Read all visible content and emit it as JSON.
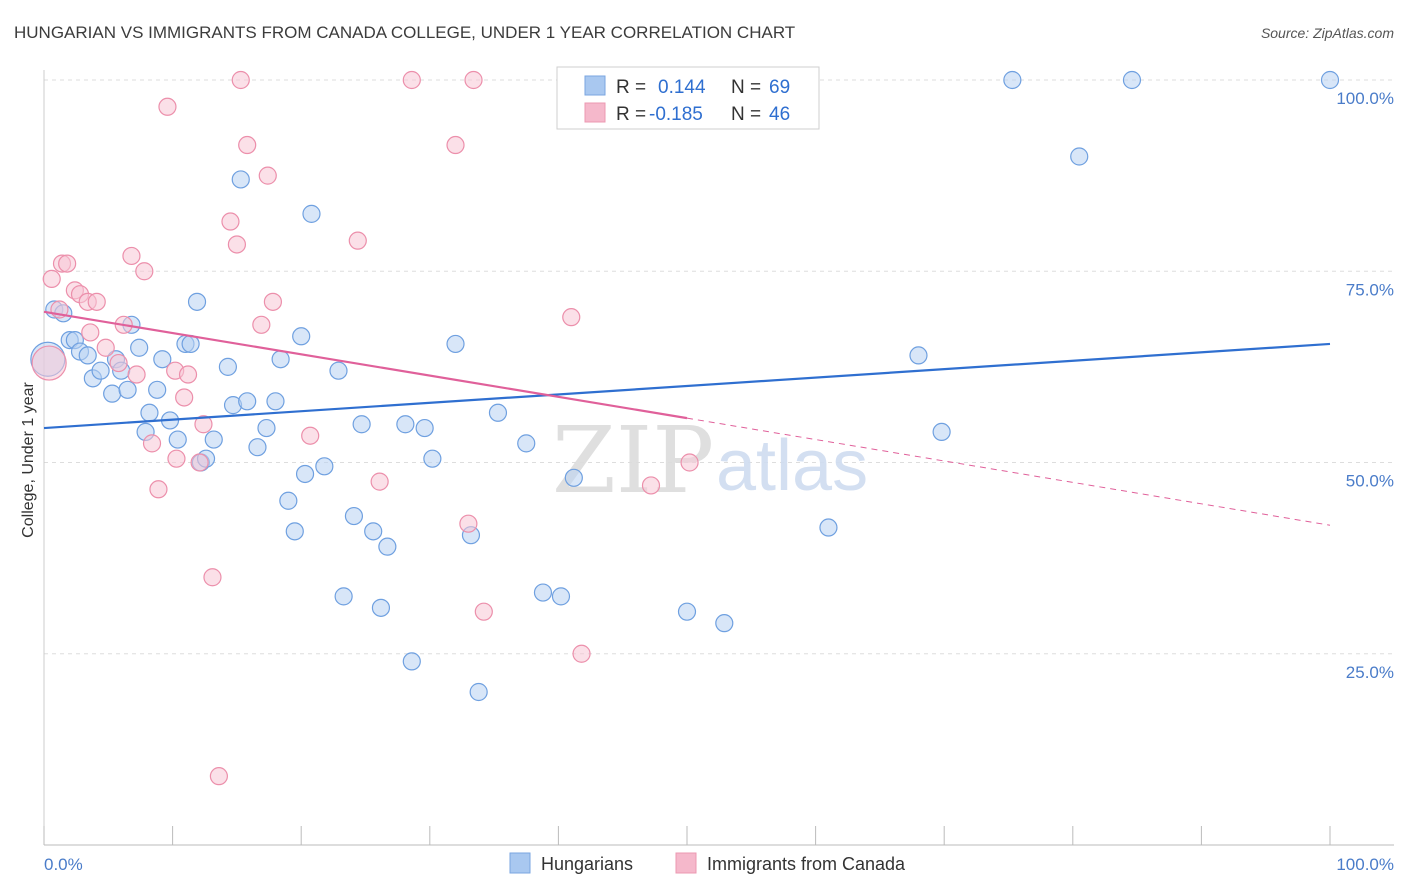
{
  "header": {
    "title": "HUNGARIAN VS IMMIGRANTS FROM CANADA COLLEGE, UNDER 1 YEAR CORRELATION CHART",
    "source": "Source: ZipAtlas.com"
  },
  "watermark": {
    "zip": "ZIP",
    "atlas": "atlas"
  },
  "legend": {
    "rows": [
      {
        "r_label": "R =",
        "r_value": "0.144",
        "n_label": "N =",
        "n_value": "69",
        "color": "#a9c8f0"
      },
      {
        "r_label": "R =",
        "r_value": "-0.185",
        "n_label": "N =",
        "n_value": "46",
        "color": "#f5b8cb"
      }
    ]
  },
  "bottom_legend": {
    "items": [
      {
        "label": "Hungarians",
        "color": "#a9c8f0"
      },
      {
        "label": "Immigrants from Canada",
        "color": "#f5b8cb"
      }
    ]
  },
  "chart_data": {
    "type": "scatter",
    "title": "HUNGARIAN VS IMMIGRANTS FROM CANADA COLLEGE, UNDER 1 YEAR CORRELATION CHART",
    "xlabel": "",
    "ylabel": "College, Under 1 year",
    "xlim": [
      0,
      100
    ],
    "ylim": [
      0,
      100
    ],
    "x_tick_labels": [
      "0.0%",
      "100.0%"
    ],
    "y_tick_labels": [
      "100.0%",
      "75.0%",
      "50.0%",
      "25.0%"
    ],
    "y_tick_values": [
      100,
      75,
      50,
      25
    ],
    "grid": true,
    "series": [
      {
        "name": "Hungarians",
        "color": "#6fa0e0",
        "fill": "#b8d1f2",
        "trend": {
          "x": [
            0,
            100
          ],
          "y": [
            54.5,
            65.5
          ],
          "color": "#2f6fd0"
        },
        "points": [
          {
            "x": 0.8,
            "y": 70
          },
          {
            "x": 1.5,
            "y": 69.5
          },
          {
            "x": 2,
            "y": 66
          },
          {
            "x": 2.4,
            "y": 66
          },
          {
            "x": 2.8,
            "y": 64.5
          },
          {
            "x": 3.4,
            "y": 64
          },
          {
            "x": 3.8,
            "y": 61
          },
          {
            "x": 4.4,
            "y": 62
          },
          {
            "x": 5.3,
            "y": 59
          },
          {
            "x": 5.6,
            "y": 63.5
          },
          {
            "x": 6,
            "y": 62
          },
          {
            "x": 6.5,
            "y": 59.5
          },
          {
            "x": 6.8,
            "y": 68
          },
          {
            "x": 7.4,
            "y": 65
          },
          {
            "x": 7.9,
            "y": 54
          },
          {
            "x": 8.2,
            "y": 56.5
          },
          {
            "x": 8.8,
            "y": 59.5
          },
          {
            "x": 9.2,
            "y": 63.5
          },
          {
            "x": 9.8,
            "y": 55.5
          },
          {
            "x": 10.4,
            "y": 53
          },
          {
            "x": 11,
            "y": 65.5
          },
          {
            "x": 11.4,
            "y": 65.5
          },
          {
            "x": 11.9,
            "y": 71
          },
          {
            "x": 12.2,
            "y": 50
          },
          {
            "x": 12.6,
            "y": 50.5
          },
          {
            "x": 13.2,
            "y": 53
          },
          {
            "x": 14.3,
            "y": 62.5
          },
          {
            "x": 14.7,
            "y": 57.5
          },
          {
            "x": 15.3,
            "y": 87
          },
          {
            "x": 15.8,
            "y": 58
          },
          {
            "x": 16.6,
            "y": 52
          },
          {
            "x": 17.3,
            "y": 54.5
          },
          {
            "x": 18,
            "y": 58
          },
          {
            "x": 18.4,
            "y": 63.5
          },
          {
            "x": 19,
            "y": 45
          },
          {
            "x": 19.5,
            "y": 41
          },
          {
            "x": 20,
            "y": 66.5
          },
          {
            "x": 20.3,
            "y": 48.5
          },
          {
            "x": 20.8,
            "y": 82.5
          },
          {
            "x": 21.8,
            "y": 49.5
          },
          {
            "x": 22.9,
            "y": 62
          },
          {
            "x": 23.3,
            "y": 32.5
          },
          {
            "x": 24.1,
            "y": 43
          },
          {
            "x": 24.7,
            "y": 55
          },
          {
            "x": 25.6,
            "y": 41
          },
          {
            "x": 26.2,
            "y": 31
          },
          {
            "x": 26.7,
            "y": 39
          },
          {
            "x": 28.1,
            "y": 55
          },
          {
            "x": 28.6,
            "y": 24
          },
          {
            "x": 29.6,
            "y": 54.5
          },
          {
            "x": 30.2,
            "y": 50.5
          },
          {
            "x": 32,
            "y": 65.5
          },
          {
            "x": 33.2,
            "y": 40.5
          },
          {
            "x": 33.8,
            "y": 20
          },
          {
            "x": 35.3,
            "y": 56.5
          },
          {
            "x": 37.5,
            "y": 52.5
          },
          {
            "x": 38.8,
            "y": 33
          },
          {
            "x": 40.2,
            "y": 32.5
          },
          {
            "x": 41.2,
            "y": 48
          },
          {
            "x": 50,
            "y": 30.5
          },
          {
            "x": 52.9,
            "y": 29
          },
          {
            "x": 61,
            "y": 41.5
          },
          {
            "x": 68,
            "y": 64
          },
          {
            "x": 69.8,
            "y": 54
          },
          {
            "x": 75.3,
            "y": 100
          },
          {
            "x": 80.5,
            "y": 90
          },
          {
            "x": 84.6,
            "y": 100
          },
          {
            "x": 100,
            "y": 100
          },
          {
            "x": 0.3,
            "y": 63.5,
            "big": true
          }
        ]
      },
      {
        "name": "Immigrants from Canada",
        "color": "#ec8fab",
        "fill": "#f8c6d5",
        "trend": {
          "x": [
            0,
            50
          ],
          "y": [
            69.7,
            55.8
          ],
          "color": "#e0609a",
          "dash_to": {
            "x": 100,
            "y": 41.8
          }
        },
        "points": [
          {
            "x": 0.6,
            "y": 74
          },
          {
            "x": 1.4,
            "y": 76
          },
          {
            "x": 1.8,
            "y": 76
          },
          {
            "x": 2.4,
            "y": 72.5
          },
          {
            "x": 2.8,
            "y": 72
          },
          {
            "x": 3.4,
            "y": 71
          },
          {
            "x": 3.6,
            "y": 67
          },
          {
            "x": 4.1,
            "y": 71
          },
          {
            "x": 4.8,
            "y": 65
          },
          {
            "x": 5.8,
            "y": 63
          },
          {
            "x": 6.2,
            "y": 68
          },
          {
            "x": 6.8,
            "y": 77
          },
          {
            "x": 7.2,
            "y": 61.5
          },
          {
            "x": 7.8,
            "y": 75
          },
          {
            "x": 8.4,
            "y": 52.5
          },
          {
            "x": 8.9,
            "y": 46.5
          },
          {
            "x": 9.6,
            "y": 96.5
          },
          {
            "x": 10.2,
            "y": 62
          },
          {
            "x": 10.3,
            "y": 50.5
          },
          {
            "x": 10.9,
            "y": 58.5
          },
          {
            "x": 11.2,
            "y": 61.5
          },
          {
            "x": 12.1,
            "y": 50
          },
          {
            "x": 12.4,
            "y": 55
          },
          {
            "x": 13.1,
            "y": 35
          },
          {
            "x": 13.6,
            "y": 9
          },
          {
            "x": 14.5,
            "y": 81.5
          },
          {
            "x": 15,
            "y": 78.5
          },
          {
            "x": 15.3,
            "y": 100
          },
          {
            "x": 15.8,
            "y": 91.5
          },
          {
            "x": 16.9,
            "y": 68
          },
          {
            "x": 17.4,
            "y": 87.5
          },
          {
            "x": 17.8,
            "y": 71
          },
          {
            "x": 20.7,
            "y": 53.5
          },
          {
            "x": 24.4,
            "y": 79
          },
          {
            "x": 26.1,
            "y": 47.5
          },
          {
            "x": 28.6,
            "y": 100
          },
          {
            "x": 32,
            "y": 91.5
          },
          {
            "x": 33,
            "y": 42
          },
          {
            "x": 33.4,
            "y": 100
          },
          {
            "x": 34.2,
            "y": 30.5
          },
          {
            "x": 41,
            "y": 69
          },
          {
            "x": 41.8,
            "y": 25
          },
          {
            "x": 47.2,
            "y": 47
          },
          {
            "x": 50.2,
            "y": 50
          },
          {
            "x": 0.4,
            "y": 63,
            "big": true
          },
          {
            "x": 1.2,
            "y": 70
          }
        ]
      }
    ]
  }
}
